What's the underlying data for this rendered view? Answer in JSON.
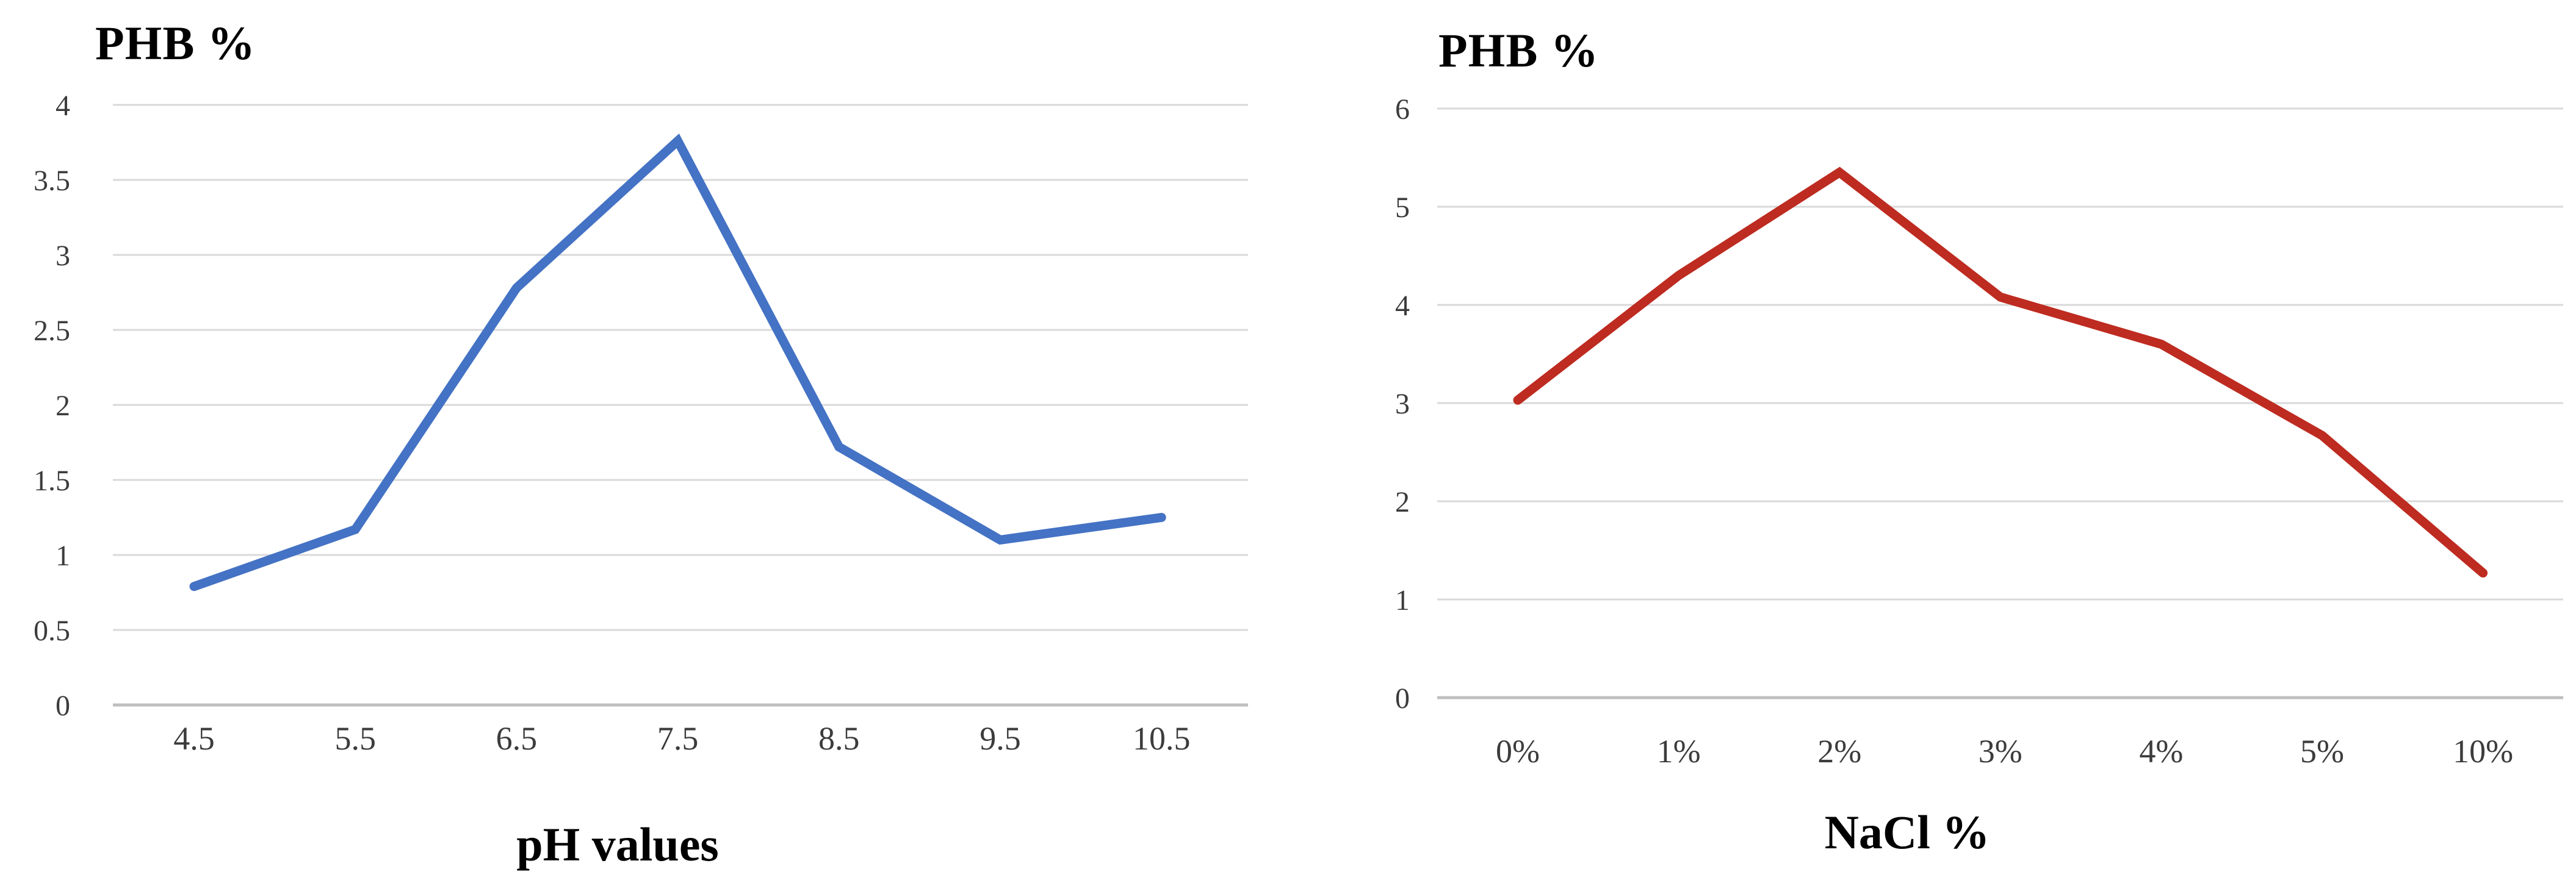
{
  "page": {
    "background": "#ffffff"
  },
  "chart_data": [
    {
      "type": "line",
      "title": "PHB %",
      "xlabel": "pH values",
      "ylabel": "PHB %",
      "categories": [
        "4.5",
        "5.5",
        "6.5",
        "7.5",
        "8.5",
        "9.5",
        "10.5"
      ],
      "values": [
        0.79,
        1.17,
        2.78,
        3.76,
        1.72,
        1.1,
        1.25
      ],
      "ylim": [
        0,
        4
      ],
      "yticks": [
        {
          "label": "4",
          "value": 4
        },
        {
          "label": "3.5",
          "value": 3.5
        },
        {
          "label": "3",
          "value": 3
        },
        {
          "label": "2.5",
          "value": 2.5
        },
        {
          "label": "2",
          "value": 2
        },
        {
          "label": "1.5",
          "value": 1.5
        },
        {
          "label": "1",
          "value": 1
        },
        {
          "label": "0.5",
          "value": 0.5
        },
        {
          "label": "0",
          "value": 0
        }
      ],
      "grid": true,
      "legend_position": "none",
      "line_color": "#4472C4",
      "grid_color": "#D9D9D9",
      "axis_color": "#BFBFBF",
      "tick_color": "#3c3c3c"
    },
    {
      "type": "line",
      "title": "PHB %",
      "xlabel": "NaCl %",
      "ylabel": "PHB %",
      "categories": [
        "0%",
        "1%",
        "2%",
        "3%",
        "4%",
        "5%",
        "10%"
      ],
      "values": [
        3.03,
        4.3,
        5.35,
        4.08,
        3.6,
        2.67,
        1.27
      ],
      "ylim": [
        0,
        6
      ],
      "yticks": [
        {
          "label": "6",
          "value": 6
        },
        {
          "label": "5",
          "value": 5
        },
        {
          "label": "4",
          "value": 4
        },
        {
          "label": "3",
          "value": 3
        },
        {
          "label": "2",
          "value": 2
        },
        {
          "label": "1",
          "value": 1
        },
        {
          "label": "0",
          "value": 0
        }
      ],
      "grid": true,
      "legend_position": "none",
      "line_color": "#BE2B20",
      "grid_color": "#D9D9D9",
      "axis_color": "#BFBFBF",
      "tick_color": "#3c3c3c"
    }
  ]
}
